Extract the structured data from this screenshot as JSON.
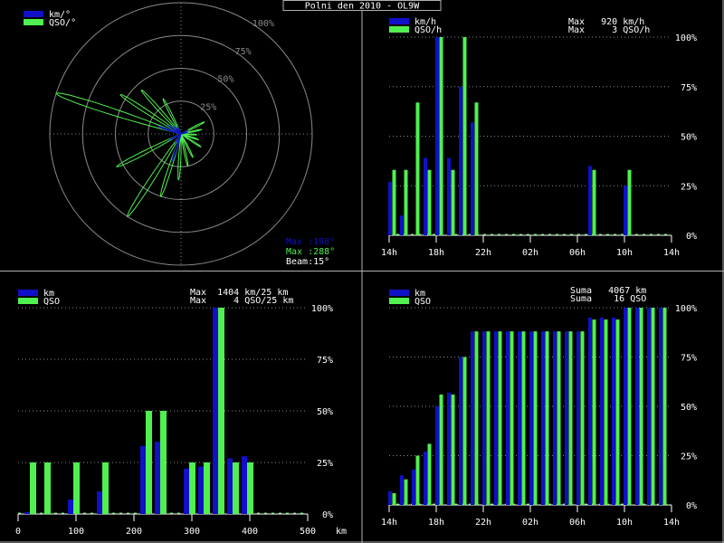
{
  "title": "Polni den 2010 - OL9W",
  "colors": {
    "blue": "#1010c8",
    "green": "#50f050",
    "grid": "#8a8a8a",
    "text": "#ffffff",
    "bg": "#000000",
    "divider": "#b0b0b0"
  },
  "panels": {
    "polar": {
      "legend": [
        "km/°",
        "QSO/°"
      ],
      "ring_labels": [
        "100%",
        "75%",
        "50%",
        "25%"
      ],
      "info_blue": "Max :198°",
      "info_green": "Max :288°",
      "info_white": "Beam:15°"
    },
    "time": {
      "legend": [
        "km/h",
        "QSO/h"
      ],
      "max_lines": [
        "Max   920 km/h",
        "Max     3 QSO/h"
      ]
    },
    "dist": {
      "legend": [
        "km",
        "QSO"
      ],
      "max_lines": [
        "Max  1404 km/25 km",
        "Max     4 QSO/25 km"
      ]
    },
    "cum": {
      "legend": [
        "km",
        "QSO"
      ],
      "max_lines": [
        "Suma   4067 km",
        "Suma    16 QSO"
      ]
    }
  },
  "chart_data": [
    {
      "type": "polar",
      "beam_deg": 15,
      "r_ticks": [
        "25%",
        "50%",
        "75%",
        "100%"
      ],
      "series": [
        {
          "name": "km/°",
          "bearings_deg": [
            288,
            303,
            318,
            333,
            198,
            213,
            243,
            63,
            78
          ],
          "values_pct": [
            18,
            12,
            8,
            6,
            22,
            8,
            10,
            6,
            5
          ]
        },
        {
          "name": "QSO/°",
          "bearings_deg": [
            288,
            303,
            318,
            333,
            198,
            213,
            243,
            63,
            78,
            93,
            108,
            123,
            153,
            168,
            183
          ],
          "values_pct": [
            100,
            55,
            45,
            30,
            50,
            75,
            55,
            20,
            16,
            12,
            14,
            18,
            20,
            25,
            35
          ]
        }
      ]
    },
    {
      "type": "bar",
      "x_ticks": [
        "14h",
        "18h",
        "22h",
        "02h",
        "06h",
        "10h",
        "14h"
      ],
      "x": [
        14,
        15,
        16,
        17,
        18,
        19,
        20,
        21,
        7,
        10
      ],
      "series": [
        {
          "name": "km/h",
          "values": [
            27,
            10,
            0,
            39,
            100,
            39,
            75,
            57,
            35,
            25
          ]
        },
        {
          "name": "QSO/h",
          "values": [
            33,
            33,
            67,
            33,
            100,
            33,
            100,
            67,
            33,
            33
          ]
        }
      ],
      "ylim": [
        0,
        100
      ],
      "y_ticks": [
        "100%",
        "75%",
        "50%",
        "25%",
        "0%"
      ]
    },
    {
      "type": "bar",
      "xlabel": "km",
      "x_ticks": [
        "0",
        "100",
        "200",
        "300",
        "400",
        "500"
      ],
      "x_bins_km": [
        25,
        50,
        100,
        150,
        225,
        250,
        300,
        325,
        350,
        375,
        400
      ],
      "series": [
        {
          "name": "km",
          "values": [
            1,
            0,
            7,
            11,
            33,
            35,
            22,
            23,
            100,
            27,
            28
          ]
        },
        {
          "name": "QSO",
          "values": [
            25,
            25,
            25,
            25,
            50,
            50,
            25,
            25,
            100,
            25,
            25
          ]
        }
      ],
      "ylim": [
        0,
        100
      ],
      "y_ticks": [
        "100%",
        "75%",
        "50%",
        "25%",
        "0%"
      ]
    },
    {
      "type": "bar",
      "x_ticks": [
        "14h",
        "18h",
        "22h",
        "02h",
        "06h",
        "10h",
        "14h"
      ],
      "x": [
        14,
        15,
        16,
        17,
        18,
        19,
        20,
        21,
        22,
        23,
        0,
        1,
        2,
        3,
        4,
        5,
        6,
        7,
        8,
        9,
        10,
        11,
        12,
        13
      ],
      "series": [
        {
          "name": "km",
          "values": [
            7,
            15,
            18,
            27,
            50,
            57,
            75,
            88,
            88,
            88,
            88,
            88,
            88,
            88,
            88,
            88,
            88,
            95,
            95,
            95,
            100,
            100,
            100,
            100
          ]
        },
        {
          "name": "QSO",
          "values": [
            6,
            13,
            25,
            31,
            56,
            56,
            75,
            88,
            88,
            88,
            88,
            88,
            88,
            88,
            88,
            88,
            88,
            94,
            94,
            94,
            100,
            100,
            100,
            100
          ]
        }
      ],
      "ylim": [
        0,
        100
      ],
      "y_ticks": [
        "100%",
        "75%",
        "50%",
        "25%",
        "0%"
      ]
    }
  ]
}
